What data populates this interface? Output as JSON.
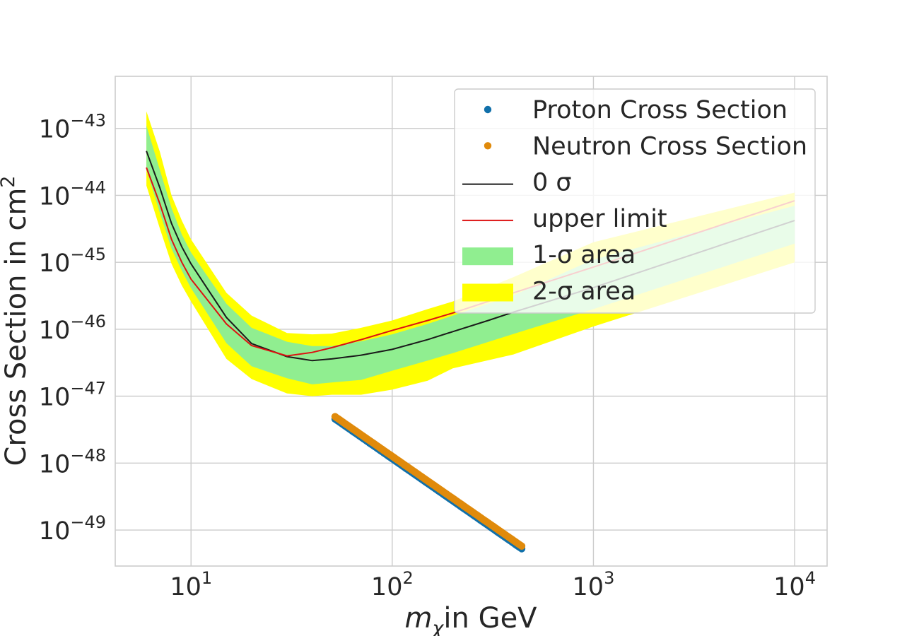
{
  "chart_data": {
    "type": "line",
    "xscale": "log",
    "yscale": "log",
    "xlim": [
      4.2,
      14500
    ],
    "ylim": [
      2.9e-50,
      6e-43
    ],
    "xlabel": "in GeV",
    "xlabel_symbol": "m",
    "xlabel_subscript": "χ",
    "ylabel": "Cross Section in cm",
    "ylabel_superscript": "2",
    "grid": true,
    "x_ticks": [
      {
        "value": 10,
        "base": "10",
        "exp": "1"
      },
      {
        "value": 100,
        "base": "10",
        "exp": "2"
      },
      {
        "value": 1000,
        "base": "10",
        "exp": "3"
      },
      {
        "value": 10000,
        "base": "10",
        "exp": "4"
      }
    ],
    "y_ticks": [
      {
        "value": 1e-43,
        "base": "10",
        "exp": "−43"
      },
      {
        "value": 1e-44,
        "base": "10",
        "exp": "−44"
      },
      {
        "value": 1e-45,
        "base": "10",
        "exp": "−45"
      },
      {
        "value": 1e-46,
        "base": "10",
        "exp": "−46"
      },
      {
        "value": 1e-47,
        "base": "10",
        "exp": "−47"
      },
      {
        "value": 1e-48,
        "base": "10",
        "exp": "−48"
      },
      {
        "value": 1e-49,
        "base": "10",
        "exp": "−49"
      }
    ],
    "bands": {
      "x": [
        6,
        7,
        8,
        9,
        10,
        15,
        20,
        30,
        40,
        50,
        70,
        100,
        150,
        200,
        400,
        1000,
        10000
      ],
      "two_sigma_upper": [
        1.8e-43,
        4.5e-44,
        1e-44,
        4.2e-45,
        2.2e-45,
        3.5e-46,
        1.6e-46,
        8.8e-47,
        8.4e-47,
        8.6e-47,
        1.05e-46,
        1.35e-46,
        2e-46,
        2.6e-46,
        6e-46,
        2e-45,
        1.1e-44
      ],
      "one_sigma_upper": [
        1.1e-43,
        2.4e-44,
        6.5e-45,
        2.6e-45,
        1.4e-45,
        2.4e-46,
        1.05e-46,
        6.5e-47,
        5.6e-47,
        5.6e-47,
        6.6e-47,
        8.4e-47,
        1.2e-46,
        1.6e-46,
        3.2e-46,
        1.1e-45,
        7e-45
      ],
      "one_sigma_lower": [
        2.4e-44,
        5.5e-45,
        1.6e-45,
        7.5e-46,
        4.1e-46,
        6.2e-47,
        2.8e-47,
        1.85e-47,
        1.5e-47,
        1.6e-47,
        1.75e-47,
        2.4e-47,
        3.4e-47,
        4.4e-47,
        8.5e-47,
        2e-46,
        1.9e-45
      ],
      "two_sigma_lower": [
        1.4e-44,
        3.2e-45,
        9.5e-46,
        4.5e-46,
        2.6e-46,
        3.6e-47,
        1.8e-47,
        1.1e-47,
        1e-47,
        1.05e-47,
        1.05e-47,
        1.25e-47,
        1.7e-47,
        2.6e-47,
        4.2e-47,
        1.1e-46,
        1e-45
      ]
    },
    "series": [
      {
        "name": "0 σ",
        "color": "#1a1a1a",
        "x": [
          6,
          7,
          8,
          9,
          10,
          15,
          20,
          30,
          40,
          50,
          70,
          100,
          150,
          200,
          300,
          400,
          1000,
          10000
        ],
        "values": [
          4.6e-44,
          1.3e-44,
          3.8e-45,
          1.7e-45,
          9.5e-46,
          1.5e-46,
          6.1e-47,
          3.9e-47,
          3.4e-47,
          3.6e-47,
          4.1e-47,
          5e-47,
          7e-47,
          9.2e-47,
          1.35e-46,
          1.8e-46,
          4.2e-46,
          4.2e-45
        ]
      },
      {
        "name": "upper limit",
        "color": "#dd1111",
        "x": [
          6,
          7,
          8,
          9,
          10,
          15,
          20,
          30,
          40,
          50,
          70,
          100,
          150,
          200,
          300,
          400,
          1000,
          10000
        ],
        "values": [
          2.6e-44,
          7.5e-45,
          2.2e-45,
          1e-45,
          5.6e-46,
          1.2e-46,
          5.7e-47,
          4e-47,
          4.5e-47,
          5.3e-47,
          7e-47,
          9.6e-47,
          1.35e-46,
          1.75e-46,
          2.6e-46,
          3.5e-46,
          8.5e-46,
          8.3e-45
        ]
      }
    ],
    "scatter_series": [
      {
        "name": "Proton Cross Section",
        "color": "#1170aa",
        "x_start": 52,
        "x_end": 440,
        "y_start": 4.6e-48,
        "y_end": 5.3e-50,
        "count": 120,
        "offset": 0.35
      },
      {
        "name": "Neutron Cross Section",
        "color": "#e08a0b",
        "x_start": 52,
        "x_end": 440,
        "y_start": 4.9e-48,
        "y_end": 5.7e-50,
        "count": 120,
        "offset": -0.35
      }
    ],
    "legend": {
      "position": "top-right",
      "entries": [
        {
          "label": "Proton Cross Section",
          "kind": "dot",
          "color": "#1170aa"
        },
        {
          "label": "Neutron Cross Section",
          "kind": "dot",
          "color": "#e08a0b"
        },
        {
          "label": "0 σ",
          "kind": "line",
          "color": "#1a1a1a"
        },
        {
          "label": "upper limit",
          "kind": "line",
          "color": "#dd1111"
        },
        {
          "label": "1-σ area",
          "kind": "patch",
          "color": "#90ee90"
        },
        {
          "label": "2-σ area",
          "kind": "patch",
          "color": "#ffff00"
        }
      ]
    }
  }
}
